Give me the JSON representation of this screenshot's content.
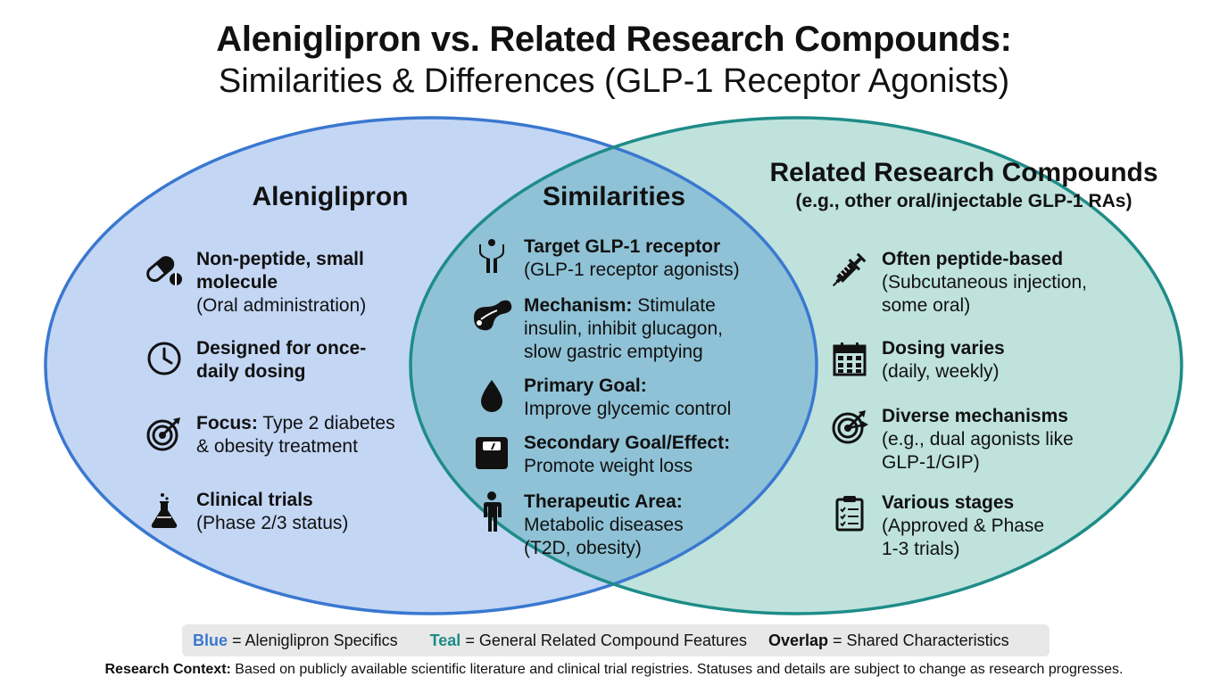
{
  "title": {
    "line1": "Aleniglipron vs. Related Research Compounds:",
    "line2": "Similarities & Differences  (GLP-1 Receptor Agonists)"
  },
  "colors": {
    "blue": "#3a78d0",
    "teal": "#1e8c88",
    "blue_fill": "#c3d6f4",
    "teal_fill": "#bfe2dc",
    "overlap_fill": "#8fc2d6"
  },
  "left": {
    "heading": "Aleniglipron",
    "items": [
      {
        "icon": "pill-icon",
        "bold": "Non-peptide, small molecule",
        "text": "(Oral administration)"
      },
      {
        "icon": "clock-icon",
        "bold": "Designed for once-daily dosing",
        "text": ""
      },
      {
        "icon": "target-icon",
        "bold": "Focus:",
        "text": " Type 2 diabetes & obesity treatment"
      },
      {
        "icon": "flask-icon",
        "bold": "Clinical trials",
        "text": "(Phase 2/3 status)"
      }
    ]
  },
  "middle": {
    "heading": "Similarities",
    "items": [
      {
        "icon": "receptor-icon",
        "bold": "Target GLP-1 receptor",
        "text": "(GLP-1 receptor agonists)"
      },
      {
        "icon": "pancreas-icon",
        "bold": "Mechanism:",
        "text": " Stimulate insulin, inhibit glucagon, slow gastric emptying"
      },
      {
        "icon": "drop-icon",
        "bold": "Primary Goal:",
        "text": "Improve glycemic control"
      },
      {
        "icon": "scale-icon",
        "bold": "Secondary Goal/Effect:",
        "text": "Promote weight loss"
      },
      {
        "icon": "person-icon",
        "bold": "Therapeutic Area:",
        "text": "Metabolic diseases (T2D, obesity)"
      }
    ]
  },
  "right": {
    "heading": "Related Research Compounds",
    "subheading": "(e.g., other oral/injectable GLP-1 RAs)",
    "items": [
      {
        "icon": "syringe-icon",
        "bold": "Often peptide-based",
        "text": "(Subcutaneous injection, some oral)"
      },
      {
        "icon": "calendar-icon",
        "bold": "Dosing varies",
        "text": "(daily, weekly)"
      },
      {
        "icon": "dual-target-icon",
        "bold": "Diverse mechanisms",
        "text": "(e.g., dual agonists like GLP-1/GIP)"
      },
      {
        "icon": "clipboard-icon",
        "bold": "Various stages",
        "text": "(Approved & Phase 1-3 trials)"
      }
    ]
  },
  "legend": {
    "blue_key": "Blue",
    "blue_text": " = Aleniglipron Specifics",
    "teal_key": "Teal",
    "teal_text": " = General Related Compound Features",
    "overlap_key": "Overlap",
    "overlap_text": " = Shared Characteristics"
  },
  "footer": {
    "label": "Research Context:",
    "text": " Based on publicly available scientific literature and clinical trial registries. Statuses and details are subject to change as research progresses."
  }
}
